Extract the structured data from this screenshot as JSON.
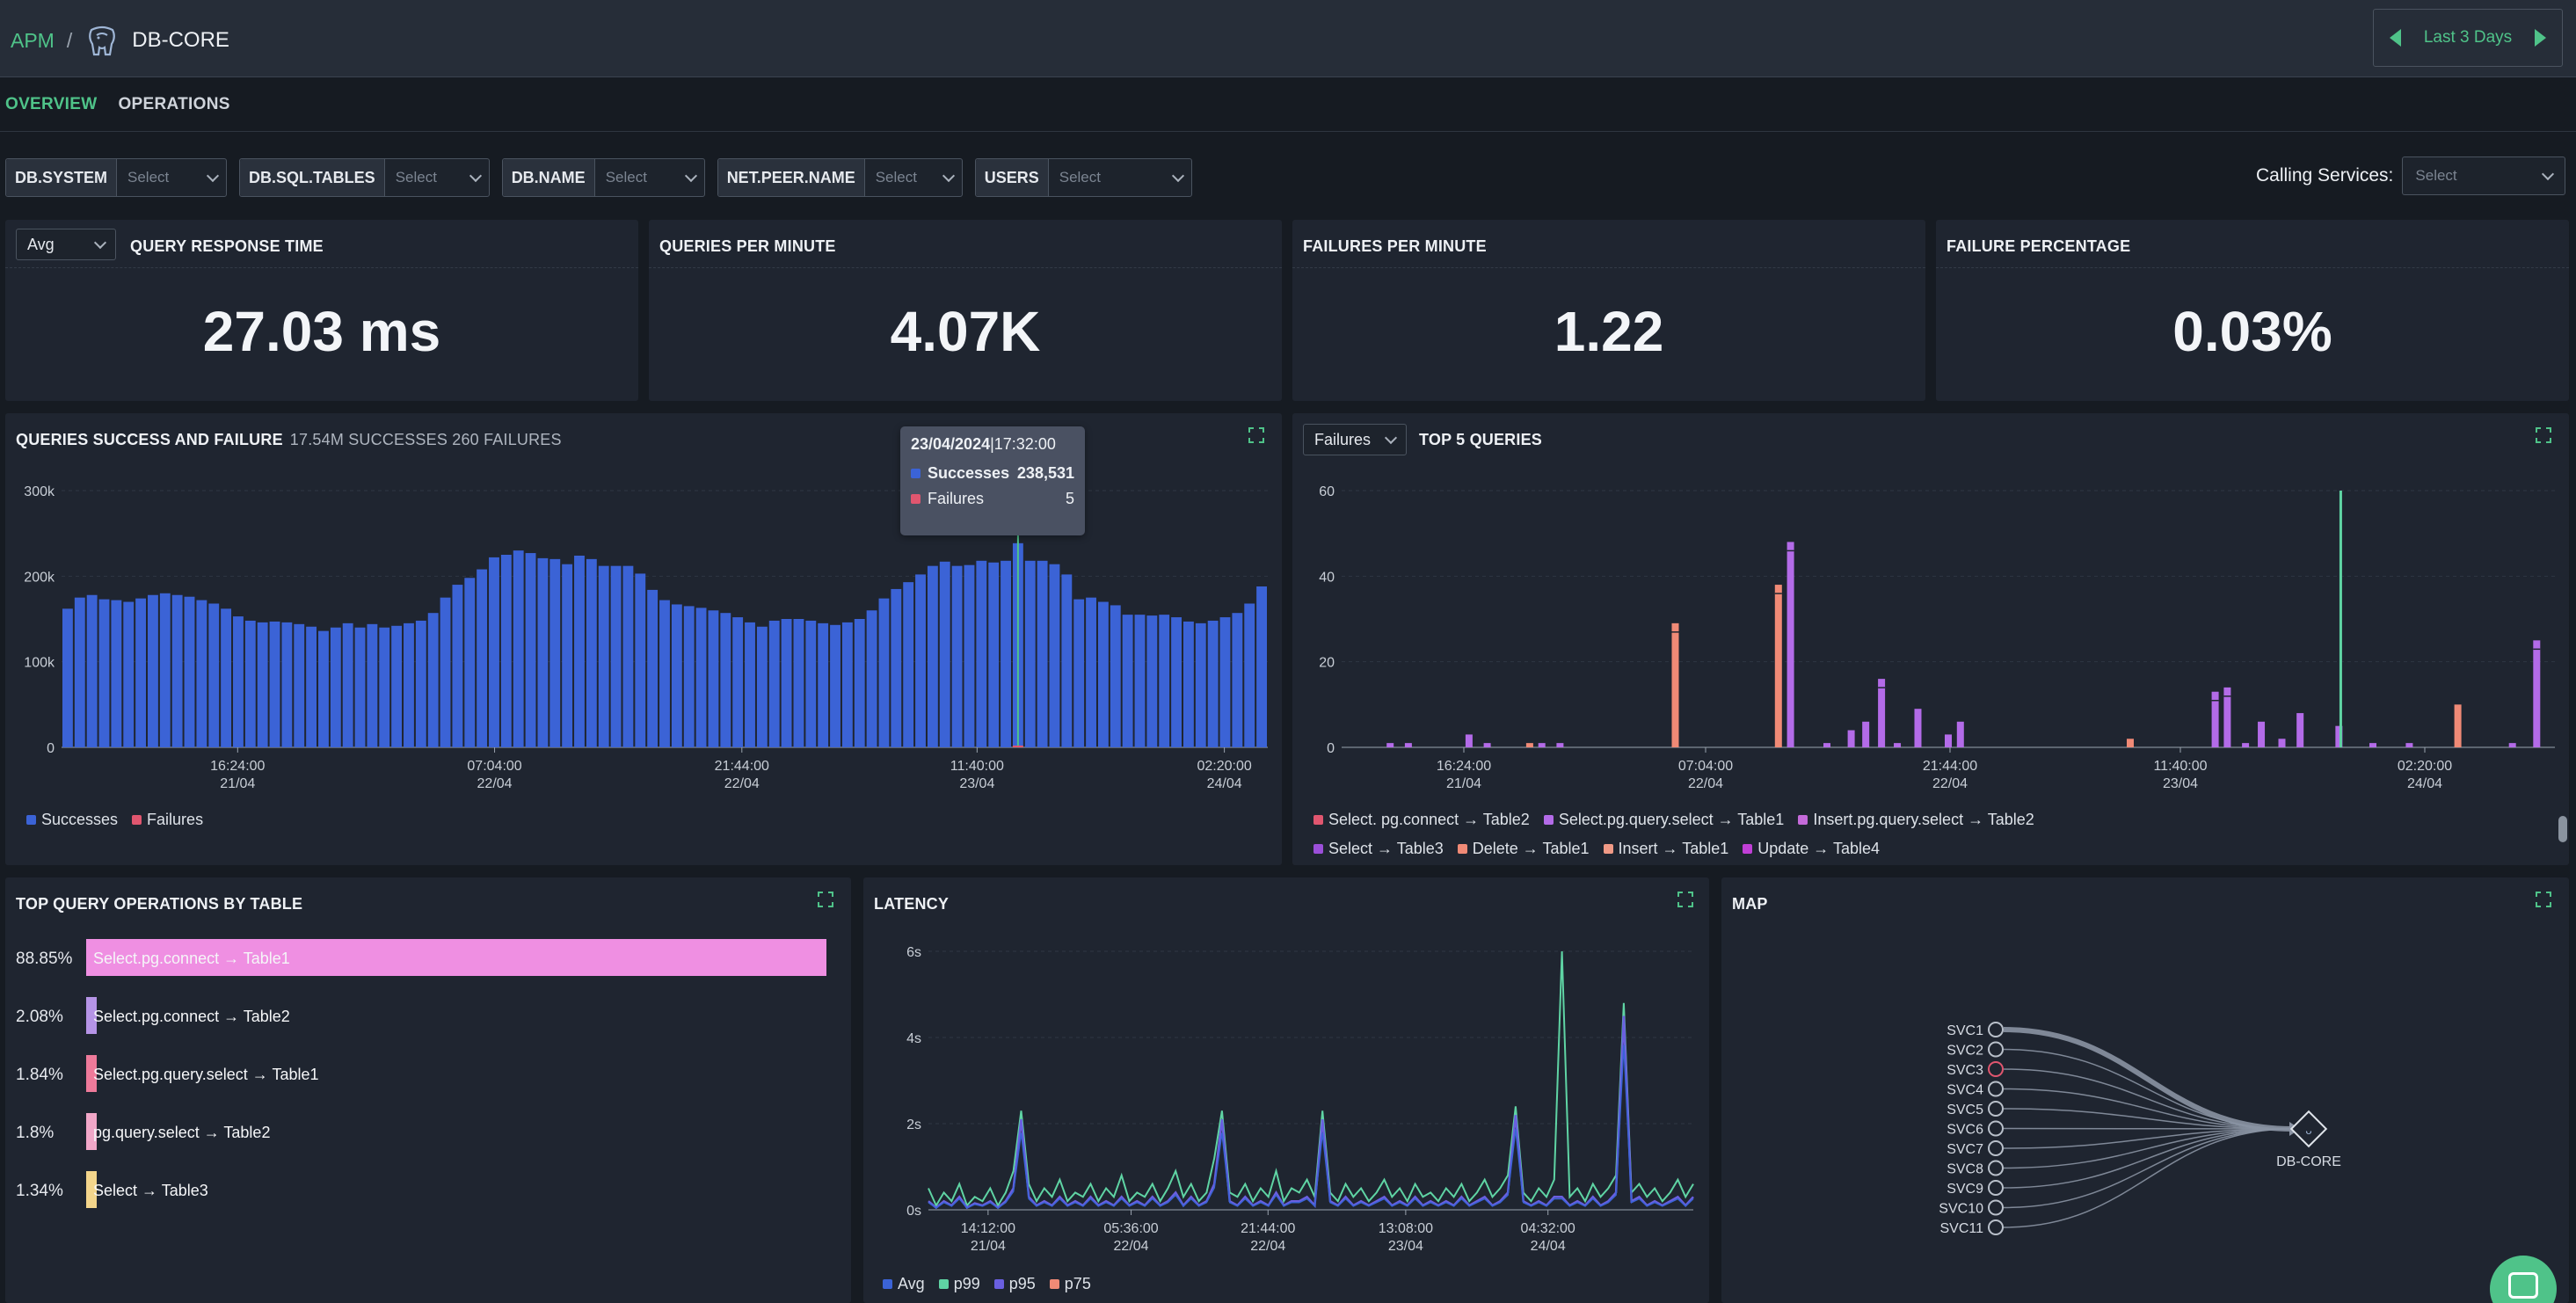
{
  "header": {
    "breadcrumb_root": "APM",
    "breadcrumb_sep": "/",
    "title": "DB-CORE",
    "time_range": "Last 3 Days"
  },
  "tabs": [
    {
      "label": "OVERVIEW",
      "active": true
    },
    {
      "label": "OPERATIONS",
      "active": false
    }
  ],
  "filters": [
    {
      "label": "DB.SYSTEM",
      "placeholder": "Select"
    },
    {
      "label": "DB.SQL.TABLES",
      "placeholder": "Select"
    },
    {
      "label": "DB.NAME",
      "placeholder": "Select"
    },
    {
      "label": "NET.PEER.NAME",
      "placeholder": "Select"
    },
    {
      "label": "USERS",
      "placeholder": "Select"
    }
  ],
  "calling_services": {
    "label": "Calling Services:",
    "placeholder": "Select"
  },
  "kpis": {
    "response_time": {
      "aggregate": "Avg",
      "title": "QUERY RESPONSE TIME",
      "value": "27.03 ms"
    },
    "qpm": {
      "title": "QUERIES PER MINUTE",
      "value": "4.07K"
    },
    "fpm": {
      "title": "FAILURES PER MINUTE",
      "value": "1.22"
    },
    "failure_pct": {
      "title": "FAILURE PERCENTAGE",
      "value": "0.03%"
    }
  },
  "success_failure": {
    "title": "QUERIES SUCCESS AND FAILURE",
    "summary": "17.54M SUCCESSES 260 FAILURES",
    "tooltip": {
      "date": "23/04/2024",
      "time": "|17:32:00",
      "successes_label": "Successes",
      "successes_value": "238,531",
      "failures_label": "Failures",
      "failures_value": "5"
    }
  },
  "top5": {
    "metric": "Failures",
    "title": "TOP 5 QUERIES"
  },
  "top_ops": {
    "title": "TOP QUERY OPERATIONS BY TABLE",
    "rows": [
      {
        "pct": "88.85%",
        "label": "Select.pg.connect → Table1",
        "value": 88.85,
        "color": "#ef8fe2"
      },
      {
        "pct": "2.08%",
        "label": "Select.pg.connect → Table2",
        "value": 2.08,
        "color": "#b594e6"
      },
      {
        "pct": "1.84%",
        "label": "Select.pg.query.select → Table1",
        "value": 1.84,
        "color": "#ee7a9a"
      },
      {
        "pct": "1.8%",
        "label": "pg.query.select → Table2",
        "value": 1.8,
        "color": "#f1a7c8"
      },
      {
        "pct": "1.34%",
        "label": "Select → Table3",
        "value": 1.34,
        "color": "#f3d58b"
      }
    ]
  },
  "latency": {
    "title": "LATENCY"
  },
  "map": {
    "title": "MAP",
    "services": [
      "SVC1",
      "SVC2",
      "SVC3",
      "SVC4",
      "SVC5",
      "SVC6",
      "SVC7",
      "SVC8",
      "SVC9",
      "SVC10",
      "SVC11"
    ],
    "target": "DB-CORE"
  },
  "colors": {
    "accent": "#4fc389",
    "success": "#3b63d6",
    "failure": "#e0566f"
  },
  "chart_data": [
    {
      "type": "bar",
      "ylim": [
        0,
        300000
      ],
      "yticks": [
        "0",
        "100k",
        "200k",
        "300k"
      ],
      "xticks": [
        {
          "time": "16:24:00",
          "date": "21/04"
        },
        {
          "time": "07:04:00",
          "date": "22/04"
        },
        {
          "time": "21:44:00",
          "date": "22/04"
        },
        {
          "time": "11:40:00",
          "date": "23/04"
        },
        {
          "time": "02:20:00",
          "date": "24/04"
        }
      ],
      "series": [
        {
          "name": "Successes",
          "color": "#3b63d6",
          "values": [
            162000,
            175000,
            178000,
            173000,
            172000,
            170000,
            174000,
            178000,
            180000,
            178000,
            176000,
            172000,
            168000,
            162000,
            153000,
            148000,
            146000,
            147000,
            146000,
            144000,
            141000,
            136000,
            140000,
            145000,
            140000,
            144000,
            140000,
            142000,
            145000,
            148000,
            157000,
            175000,
            190000,
            198000,
            208000,
            222000,
            225000,
            230000,
            227000,
            221000,
            220000,
            214000,
            224000,
            220000,
            212000,
            212000,
            212000,
            203000,
            184000,
            172000,
            167000,
            165000,
            163000,
            160000,
            157000,
            152000,
            146000,
            141000,
            148000,
            150000,
            150000,
            148000,
            145000,
            143000,
            146000,
            150000,
            160000,
            174000,
            185000,
            193000,
            202000,
            212000,
            217000,
            212000,
            213000,
            218000,
            216000,
            218000,
            238531,
            218000,
            218000,
            214000,
            202000,
            173000,
            175000,
            170000,
            166000,
            155000,
            155000,
            154000,
            155000,
            152000,
            147000,
            145000,
            148000,
            152000,
            157000,
            168000,
            188000
          ]
        },
        {
          "name": "Failures",
          "color": "#e0566f",
          "values": [
            0,
            0,
            0,
            0,
            0,
            0,
            0,
            0,
            0,
            0,
            0,
            0,
            0,
            0,
            0,
            0,
            0,
            0,
            0,
            0,
            0,
            0,
            0,
            0,
            0,
            0,
            0,
            0,
            0,
            0,
            0,
            0,
            0,
            0,
            0,
            0,
            0,
            0,
            0,
            0,
            0,
            0,
            0,
            0,
            0,
            0,
            0,
            0,
            0,
            0,
            0,
            0,
            0,
            0,
            0,
            0,
            0,
            0,
            0,
            0,
            0,
            0,
            0,
            0,
            0,
            0,
            0,
            0,
            0,
            0,
            0,
            0,
            0,
            0,
            0,
            0,
            0,
            0,
            5,
            0,
            0,
            0,
            0,
            0,
            0,
            0,
            0,
            0,
            0,
            0,
            0,
            0,
            0,
            0,
            0,
            0,
            0,
            0,
            0
          ]
        }
      ]
    },
    {
      "type": "bar",
      "ylim": [
        0,
        60
      ],
      "yticks": [
        "0",
        "20",
        "40",
        "60"
      ],
      "xticks": [
        {
          "time": "16:24:00",
          "date": "21/04"
        },
        {
          "time": "07:04:00",
          "date": "22/04"
        },
        {
          "time": "21:44:00",
          "date": "22/04"
        },
        {
          "time": "11:40:00",
          "date": "23/04"
        },
        {
          "time": "02:20:00",
          "date": "24/04"
        }
      ],
      "series_legend": [
        {
          "name": "Select. pg.connect → Table2",
          "color": "#e0566f"
        },
        {
          "name": "Select.pg.query.select → Table1",
          "color": "#b36be8"
        },
        {
          "name": "Insert.pg.query.select → Table2",
          "color": "#c46ad9"
        },
        {
          "name": "Select → Table3",
          "color": "#9b4fd9"
        },
        {
          "name": "Delete → Table1",
          "color": "#f08a76"
        },
        {
          "name": "Insert → Table1",
          "color": "#f09a86"
        },
        {
          "name": "Update → Table4",
          "color": "#c03fd6"
        }
      ],
      "bars": [
        {
          "x": 0.04,
          "v": 1,
          "c": "#b36be8"
        },
        {
          "x": 0.055,
          "v": 1,
          "c": "#b36be8"
        },
        {
          "x": 0.105,
          "v": 3,
          "c": "#b36be8"
        },
        {
          "x": 0.12,
          "v": 1,
          "c": "#b36be8"
        },
        {
          "x": 0.155,
          "v": 1,
          "c": "#f08a76"
        },
        {
          "x": 0.165,
          "v": 1,
          "c": "#b36be8"
        },
        {
          "x": 0.18,
          "v": 1,
          "c": "#b36be8"
        },
        {
          "x": 0.275,
          "v": 29,
          "c": "#f08a76"
        },
        {
          "x": 0.36,
          "v": 38,
          "c": "#f08a76"
        },
        {
          "x": 0.37,
          "v": 48,
          "c": "#b36be8"
        },
        {
          "x": 0.4,
          "v": 1,
          "c": "#b36be8"
        },
        {
          "x": 0.42,
          "v": 4,
          "c": "#b36be8"
        },
        {
          "x": 0.432,
          "v": 6,
          "c": "#b36be8"
        },
        {
          "x": 0.445,
          "v": 16,
          "c": "#b36be8"
        },
        {
          "x": 0.458,
          "v": 1,
          "c": "#b36be8"
        },
        {
          "x": 0.475,
          "v": 9,
          "c": "#b36be8"
        },
        {
          "x": 0.5,
          "v": 3,
          "c": "#b36be8"
        },
        {
          "x": 0.51,
          "v": 6,
          "c": "#b36be8"
        },
        {
          "x": 0.65,
          "v": 2,
          "c": "#f08a76"
        },
        {
          "x": 0.72,
          "v": 13,
          "c": "#b36be8"
        },
        {
          "x": 0.73,
          "v": 14,
          "c": "#b36be8"
        },
        {
          "x": 0.745,
          "v": 1,
          "c": "#b36be8"
        },
        {
          "x": 0.758,
          "v": 6,
          "c": "#b36be8"
        },
        {
          "x": 0.775,
          "v": 2,
          "c": "#b36be8"
        },
        {
          "x": 0.79,
          "v": 8,
          "c": "#b36be8"
        },
        {
          "x": 0.822,
          "v": 5,
          "c": "#b36be8"
        },
        {
          "x": 0.85,
          "v": 1,
          "c": "#b36be8"
        },
        {
          "x": 0.88,
          "v": 1,
          "c": "#b36be8"
        },
        {
          "x": 0.92,
          "v": 10,
          "c": "#f08a76"
        },
        {
          "x": 0.965,
          "v": 1,
          "c": "#b36be8"
        },
        {
          "x": 0.985,
          "v": 25,
          "c": "#b36be8"
        }
      ],
      "spike": {
        "x": 0.8235,
        "v": 60,
        "color": "#5fd4a4"
      }
    },
    {
      "type": "line",
      "ylim": [
        0,
        6
      ],
      "yticks": [
        "0s",
        "2s",
        "4s",
        "6s"
      ],
      "xticks": [
        {
          "time": "14:12:00",
          "date": "21/04"
        },
        {
          "time": "05:36:00",
          "date": "22/04"
        },
        {
          "time": "21:44:00",
          "date": "22/04"
        },
        {
          "time": "13:08:00",
          "date": "23/04"
        },
        {
          "time": "04:32:00",
          "date": "24/04"
        }
      ],
      "series": [
        {
          "name": "Avg",
          "color": "#3b63d6"
        },
        {
          "name": "p99",
          "color": "#5fd4a4"
        },
        {
          "name": "p95",
          "color": "#6a5fe0"
        },
        {
          "name": "p75",
          "color": "#f08a76"
        }
      ],
      "p99": [
        0.5,
        0.1,
        0.4,
        0.2,
        0.6,
        0.1,
        0.3,
        0.2,
        0.5,
        0.1,
        0.4,
        0.9,
        2.3,
        0.6,
        0.2,
        0.5,
        0.3,
        0.7,
        0.2,
        0.4,
        0.3,
        0.6,
        0.2,
        0.5,
        0.3,
        0.8,
        0.2,
        0.4,
        0.3,
        0.6,
        0.2,
        0.5,
        0.9,
        0.3,
        0.6,
        0.2,
        0.4,
        1.2,
        2.3,
        0.4,
        0.3,
        0.6,
        0.2,
        0.5,
        0.3,
        0.9,
        0.2,
        0.5,
        0.4,
        0.7,
        0.3,
        2.3,
        0.4,
        0.2,
        0.6,
        0.3,
        0.5,
        0.2,
        0.4,
        0.7,
        0.3,
        0.5,
        0.2,
        0.6,
        0.3,
        0.4,
        0.2,
        0.5,
        0.3,
        0.6,
        0.2,
        0.4,
        0.7,
        0.3,
        0.5,
        0.8,
        2.4,
        0.4,
        0.2,
        0.5,
        0.3,
        0.7,
        6.0,
        0.3,
        0.5,
        0.2,
        0.6,
        0.3,
        0.5,
        0.8,
        4.8,
        0.4,
        0.6,
        0.3,
        0.5,
        0.2,
        0.4,
        0.7,
        0.3,
        0.6
      ],
      "p95": [
        0.2,
        0.05,
        0.2,
        0.1,
        0.3,
        0.05,
        0.15,
        0.1,
        0.2,
        0.05,
        0.2,
        0.5,
        2.1,
        0.3,
        0.1,
        0.2,
        0.1,
        0.3,
        0.1,
        0.2,
        0.1,
        0.3,
        0.1,
        0.2,
        0.1,
        0.3,
        0.1,
        0.2,
        0.1,
        0.3,
        0.1,
        0.2,
        0.4,
        0.1,
        0.3,
        0.1,
        0.2,
        0.6,
        2.1,
        0.2,
        0.1,
        0.3,
        0.1,
        0.2,
        0.1,
        0.4,
        0.1,
        0.2,
        0.2,
        0.3,
        0.1,
        2.1,
        0.2,
        0.1,
        0.3,
        0.1,
        0.2,
        0.1,
        0.2,
        0.3,
        0.1,
        0.2,
        0.1,
        0.3,
        0.1,
        0.2,
        0.1,
        0.2,
        0.1,
        0.3,
        0.1,
        0.2,
        0.3,
        0.1,
        0.2,
        0.4,
        2.2,
        0.2,
        0.1,
        0.2,
        0.1,
        0.3,
        0.3,
        0.1,
        0.2,
        0.1,
        0.3,
        0.1,
        0.2,
        0.4,
        4.5,
        0.2,
        0.3,
        0.1,
        0.2,
        0.1,
        0.2,
        0.3,
        0.1,
        0.3
      ]
    }
  ]
}
